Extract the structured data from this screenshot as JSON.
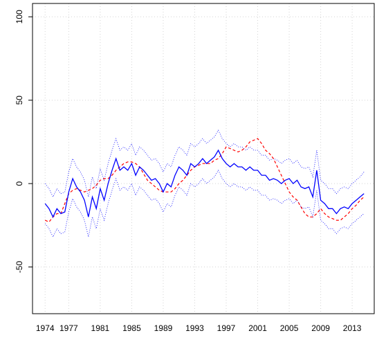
{
  "chart_data": {
    "type": "line",
    "x": [
      1974,
      1974.5,
      1975,
      1975.5,
      1976,
      1976.5,
      1977,
      1977.5,
      1978,
      1978.5,
      1979,
      1979.5,
      1980,
      1980.5,
      1981,
      1981.5,
      1982,
      1982.5,
      1983,
      1983.5,
      1984,
      1984.5,
      1985,
      1985.5,
      1986,
      1986.5,
      1987,
      1987.5,
      1988,
      1988.5,
      1989,
      1989.5,
      1990,
      1990.5,
      1991,
      1991.5,
      1992,
      1992.5,
      1993,
      1993.5,
      1994,
      1994.5,
      1995,
      1995.5,
      1996,
      1996.5,
      1997,
      1997.5,
      1998,
      1998.5,
      1999,
      1999.5,
      2000,
      2000.5,
      2001,
      2001.5,
      2002,
      2002.5,
      2003,
      2003.5,
      2004,
      2004.5,
      2005,
      2005.5,
      2006,
      2006.5,
      2007,
      2007.5,
      2008,
      2008.5,
      2009,
      2009.5,
      2010,
      2010.5,
      2011,
      2011.5,
      2012,
      2012.5,
      2013,
      2013.5,
      2014,
      2014.5
    ],
    "series": [
      {
        "color": "#0000ff",
        "linestyle": "dotted",
        "width": 0.8,
        "values": [
          0,
          -3,
          -8,
          -3,
          -6,
          -5,
          7,
          15,
          10,
          7,
          2,
          -8,
          4,
          -3,
          9,
          2,
          12,
          20,
          27,
          20,
          22,
          20,
          24,
          17,
          22,
          20,
          17,
          14,
          15,
          12,
          7,
          12,
          10,
          17,
          22,
          20,
          17,
          24,
          22,
          24,
          27,
          24,
          26,
          28,
          32,
          27,
          24,
          22,
          24,
          22,
          22,
          20,
          22,
          20,
          20,
          17,
          17,
          14,
          15,
          14,
          12,
          14,
          15,
          12,
          14,
          10,
          9,
          10,
          4,
          20,
          2,
          0,
          -3,
          -3,
          -6,
          -3,
          -2,
          -3,
          0,
          2,
          4,
          7
        ]
      },
      {
        "color": "#0000ff",
        "linestyle": "dotted",
        "width": 0.8,
        "values": [
          -24,
          -27,
          -32,
          -27,
          -30,
          -29,
          -17,
          -9,
          -14,
          -17,
          -22,
          -32,
          -20,
          -27,
          -15,
          -22,
          -12,
          -4,
          3,
          -4,
          -2,
          -4,
          0,
          -7,
          -2,
          -4,
          -7,
          -10,
          -9,
          -12,
          -17,
          -12,
          -14,
          -7,
          -2,
          -4,
          -7,
          0,
          -2,
          0,
          3,
          0,
          2,
          4,
          8,
          3,
          0,
          -2,
          0,
          -2,
          -2,
          -4,
          -2,
          -4,
          -4,
          -7,
          -7,
          -10,
          -9,
          -10,
          -12,
          -10,
          -9,
          -12,
          -10,
          -14,
          -15,
          -14,
          -20,
          -4,
          -22,
          -24,
          -27,
          -27,
          -30,
          -27,
          -26,
          -27,
          -24,
          -22,
          -20,
          -18
        ]
      },
      {
        "color": "#ff0000",
        "linestyle": "dashed",
        "width": 1.2,
        "values": [
          -22,
          -23,
          -20,
          -18,
          -18,
          -12,
          -6,
          -4,
          -3,
          -4,
          -5,
          -4,
          -3,
          -1,
          2,
          3,
          3,
          5,
          8,
          10,
          12,
          13,
          13,
          12,
          10,
          6,
          2,
          0,
          -2,
          -4,
          -5,
          -5,
          -5,
          -3,
          0,
          2,
          5,
          8,
          10,
          11,
          12,
          12,
          12,
          14,
          15,
          18,
          22,
          21,
          20,
          19,
          20,
          22,
          25,
          26,
          27,
          24,
          20,
          18,
          15,
          10,
          5,
          0,
          -5,
          -8,
          -10,
          -14,
          -18,
          -20,
          -20,
          -18,
          -15,
          -18,
          -20,
          -21,
          -22,
          -22,
          -20,
          -18,
          -15,
          -13,
          -10,
          -8
        ]
      },
      {
        "color": "#0000ff",
        "linestyle": "solid",
        "width": 1.3,
        "values": [
          -12,
          -15,
          -20,
          -15,
          -18,
          -17,
          -5,
          3,
          -2,
          -5,
          -10,
          -20,
          -8,
          -15,
          -3,
          -10,
          0,
          8,
          15,
          8,
          10,
          8,
          12,
          5,
          10,
          8,
          5,
          2,
          3,
          0,
          -5,
          0,
          -2,
          5,
          10,
          8,
          5,
          12,
          10,
          12,
          15,
          12,
          14,
          16,
          20,
          15,
          12,
          10,
          12,
          10,
          10,
          8,
          10,
          8,
          8,
          5,
          5,
          2,
          3,
          2,
          0,
          2,
          3,
          0,
          2,
          -2,
          -3,
          -2,
          -8,
          8,
          -10,
          -12,
          -15,
          -15,
          -18,
          -15,
          -14,
          -15,
          -12,
          -10,
          -8,
          -6
        ]
      }
    ],
    "xlim": [
      1972.4,
      2015.8
    ],
    "ylim": [
      -78,
      108
    ],
    "xticks": [
      1974,
      1977,
      1981,
      1985,
      1989,
      1993,
      1997,
      2001,
      2005,
      2009,
      2013
    ],
    "yticks": [
      -50,
      0,
      50,
      100
    ],
    "grid": true
  }
}
